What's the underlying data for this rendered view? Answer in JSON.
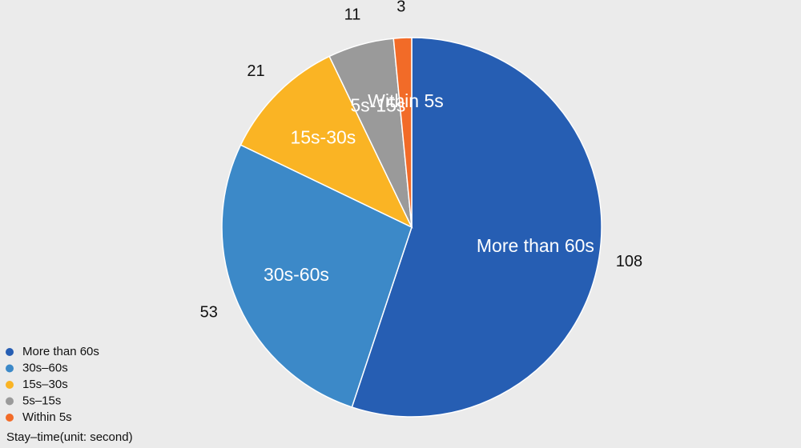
{
  "chart_data": {
    "type": "pie",
    "title": "",
    "legend_position": "bottom-left",
    "legend_title": "Stay–time(unit: second)",
    "slices": [
      {
        "label": "More than 60s",
        "legend_label": "More than 60s",
        "value": 108,
        "color": "#265eb3"
      },
      {
        "label": "30s-60s",
        "legend_label": "30s–60s",
        "value": 53,
        "color": "#3c89c8"
      },
      {
        "label": "15s-30s",
        "legend_label": "15s–30s",
        "value": 21,
        "color": "#fab424"
      },
      {
        "label": "5s-15s",
        "legend_label": "5s–15s",
        "value": 11,
        "color": "#9a9a9a"
      },
      {
        "label": "Within 5s",
        "legend_label": "Within 5s",
        "value": 3,
        "color": "#f26b28"
      }
    ]
  }
}
